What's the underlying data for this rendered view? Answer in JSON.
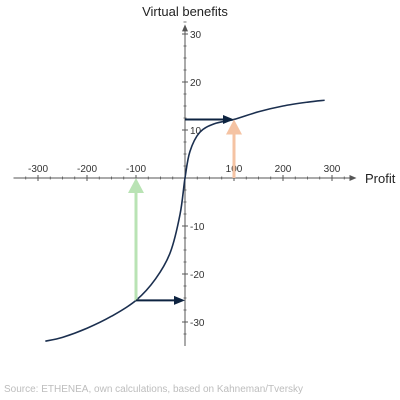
{
  "chart_data": {
    "type": "line",
    "title": "",
    "xlabel": "Profit",
    "ylabel": "Virtual benefits",
    "xlim": [
      -350,
      350
    ],
    "ylim": [
      -35,
      32
    ],
    "x_ticks": [
      -300,
      -200,
      -100,
      100,
      200,
      300
    ],
    "y_ticks": [
      30,
      20,
      10,
      -10,
      -20,
      -30
    ],
    "series": [
      {
        "x": [
          -285,
          -250,
          -200,
          -150,
          -100,
          -60,
          -30,
          -10,
          0,
          10,
          30,
          60,
          100,
          150,
          200,
          250,
          285
        ],
        "y": [
          -34,
          -33.2,
          -31.3,
          -28.8,
          -25.5,
          -21.0,
          -15.5,
          -7.5,
          0,
          5.5,
          9.5,
          11.3,
          12.2,
          13.8,
          15.0,
          15.8,
          16.2
        ]
      }
    ],
    "annotations": [
      {
        "kind": "arrow",
        "color": "#0d2340",
        "from": [
          0,
          12.2
        ],
        "to": [
          100,
          12.2
        ]
      },
      {
        "kind": "arrow",
        "color": "#f5c3a3",
        "from": [
          100,
          0
        ],
        "to": [
          100,
          12.2
        ]
      },
      {
        "kind": "arrow",
        "color": "#b9e3b4",
        "from": [
          -100,
          -25.5
        ],
        "to": [
          -100,
          0
        ]
      },
      {
        "kind": "arrow",
        "color": "#0d2340",
        "from": [
          -100,
          -25.5
        ],
        "to": [
          0,
          -25.5
        ]
      }
    ],
    "colors": {
      "curve": "#1b2f4f",
      "axis": "#555555"
    }
  },
  "source": "Source: ETHENEA, own calculations, based on Kahneman/Tversky"
}
